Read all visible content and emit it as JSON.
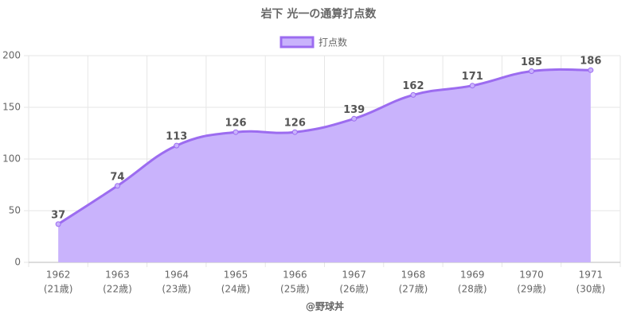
{
  "chart_data": {
    "type": "area",
    "title": "岩下 光一の通算打点数",
    "categories": [
      [
        "1962",
        "(21歳)"
      ],
      [
        "1963",
        "(22歳)"
      ],
      [
        "1964",
        "(23歳)"
      ],
      [
        "1965",
        "(24歳)"
      ],
      [
        "1966",
        "(25歳)"
      ],
      [
        "1967",
        "(26歳)"
      ],
      [
        "1968",
        "(27歳)"
      ],
      [
        "1969",
        "(28歳)"
      ],
      [
        "1970",
        "(29歳)"
      ],
      [
        "1971",
        "(30歳)"
      ]
    ],
    "series": [
      {
        "name": "打点数",
        "color": "#9c6cf0",
        "fill": "#c9b3fc",
        "values": [
          37,
          74,
          113,
          126,
          126,
          139,
          162,
          171,
          185,
          186
        ]
      }
    ],
    "ylim": [
      0,
      200
    ],
    "yticks": [
      0,
      50,
      100,
      150,
      200
    ],
    "grid": true,
    "legend": "top",
    "source": "@野球丼"
  }
}
